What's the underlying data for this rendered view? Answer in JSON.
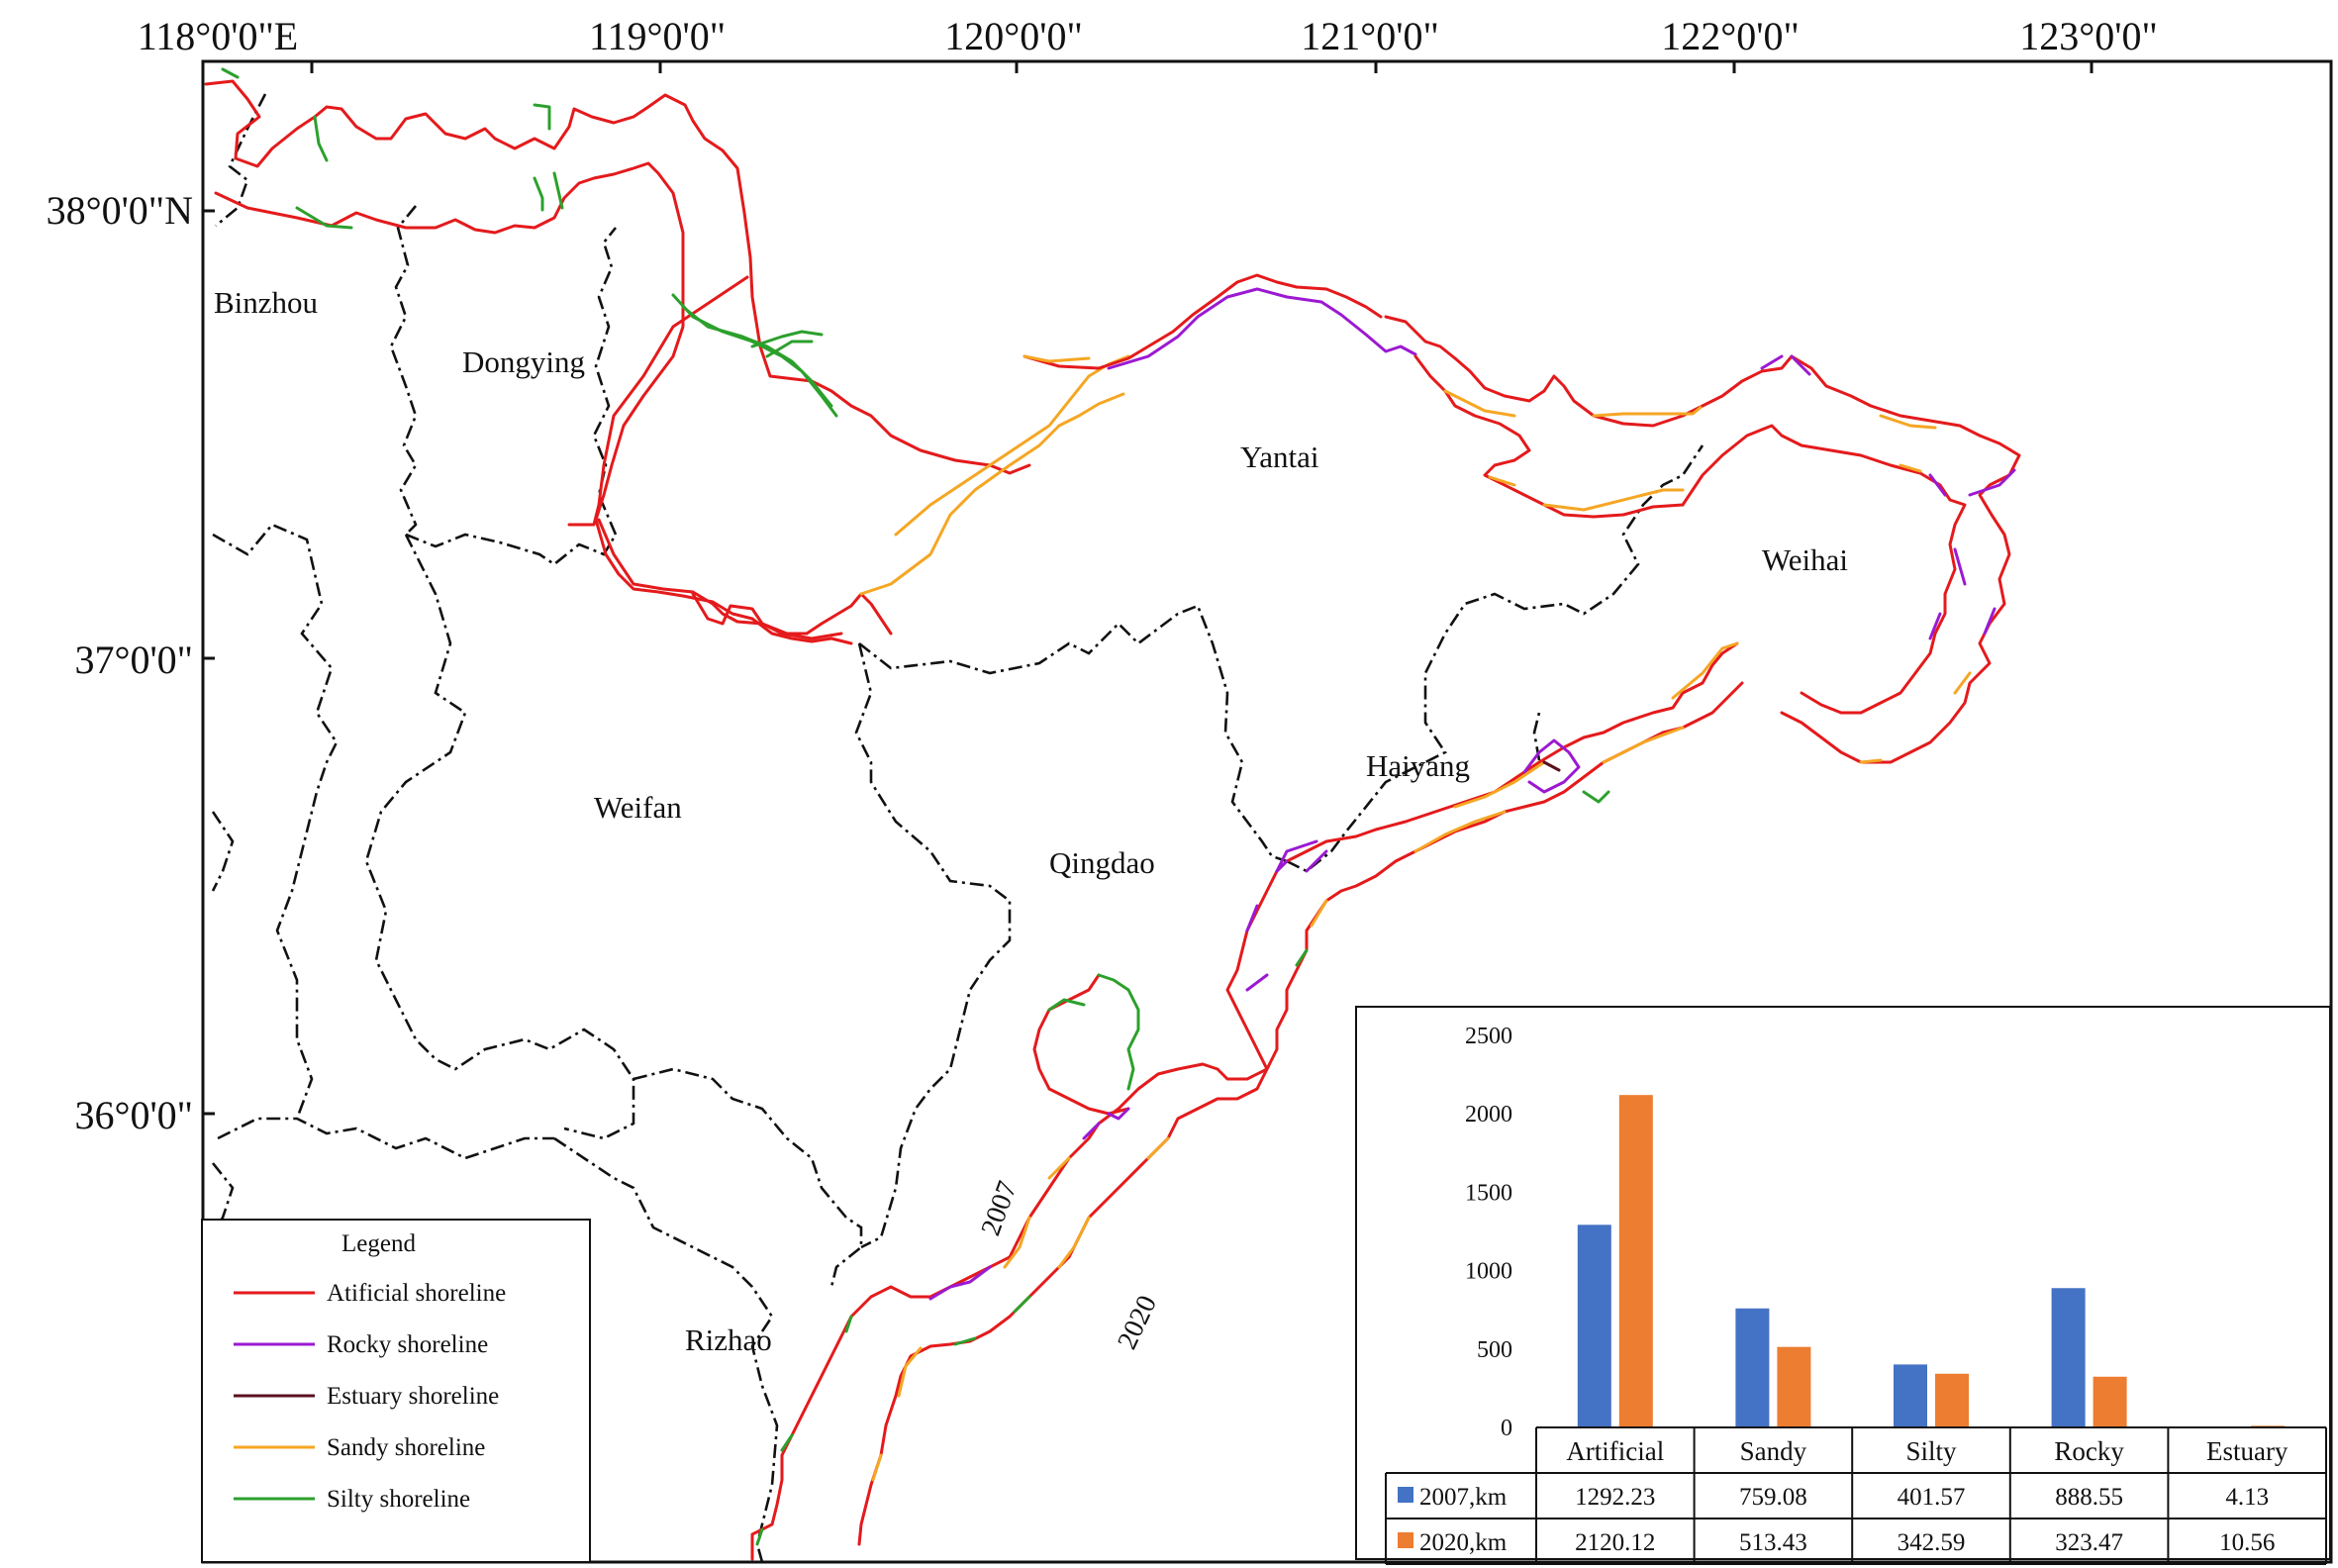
{
  "graticule": {
    "lon_labels": [
      "118°0'0\"E",
      "119°0'0\"",
      "120°0'0\"",
      "121°0'0\"",
      "122°0'0\"",
      "123°0'0\""
    ],
    "lat_labels": [
      "38°0'0\"N",
      "37°0'0\"",
      "36°0'0\""
    ]
  },
  "cities": [
    {
      "id": "binzhou",
      "label": "Binzhou"
    },
    {
      "id": "dongying",
      "label": "Dongying"
    },
    {
      "id": "yantai",
      "label": "Yantai"
    },
    {
      "id": "weihai",
      "label": "Weihai"
    },
    {
      "id": "weifan",
      "label": "Weifan"
    },
    {
      "id": "qingdao",
      "label": "Qingdao"
    },
    {
      "id": "haiyang",
      "label": "Haiyang"
    },
    {
      "id": "rizhao",
      "label": "Rizhao"
    }
  ],
  "year_labels": {
    "inner": "2007",
    "outer": "2020"
  },
  "legend": {
    "title": "Legend",
    "items": [
      {
        "label": "Atificial shoreline",
        "color": "#e41a1c"
      },
      {
        "label": "Rocky shoreline",
        "color": "#9b19d2"
      },
      {
        "label": "Estuary shoreline",
        "color": "#5a1020"
      },
      {
        "label": "Sandy shoreline",
        "color": "#f5a623"
      },
      {
        "label": "Silty shoreline",
        "color": "#2ca02c"
      }
    ]
  },
  "colors": {
    "artificial": "#e41a1c",
    "rocky": "#9b19d2",
    "estuary": "#5a1020",
    "sandy": "#f5a623",
    "silty": "#2ca02c",
    "series_2007": "#4472c4",
    "series_2020": "#ed7d31"
  },
  "chart_data": {
    "type": "bar",
    "categories": [
      "Artificial",
      "Sandy",
      "Silty",
      "Rocky",
      "Estuary"
    ],
    "series": [
      {
        "name": "2007,km",
        "values": [
          1292.23,
          759.08,
          401.57,
          888.55,
          4.13
        ],
        "labels": [
          "1292.23",
          "759.08",
          "401.57",
          "888.55",
          "4.13"
        ]
      },
      {
        "name": "2020,km",
        "values": [
          2120.12,
          513.43,
          342.59,
          323.47,
          10.56
        ],
        "labels": [
          "2120.12",
          "513.43",
          "342.59",
          "323.47",
          "10.56"
        ]
      }
    ],
    "ylim": [
      0,
      2500
    ],
    "yticks": [
      "0",
      "500",
      "1000",
      "1500",
      "2000",
      "2500"
    ],
    "grid": false,
    "legend": "data-table"
  }
}
